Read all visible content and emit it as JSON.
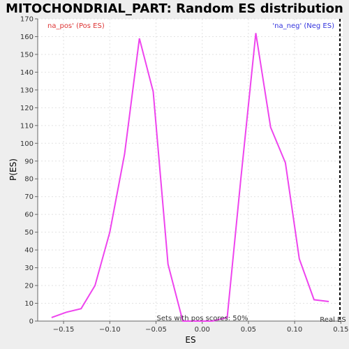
{
  "chart_data": {
    "type": "line",
    "title": "MITOCHONDRIAL_PART: Random ES distribution",
    "xlabel": "ES",
    "ylabel": "P(ES)",
    "xlim": [
      -0.178,
      0.152
    ],
    "ylim": [
      0,
      170
    ],
    "xticks": [
      -0.15,
      -0.1,
      -0.05,
      0.0,
      0.05,
      0.1,
      0.15
    ],
    "xtick_labels": [
      "−0.15",
      "−0.10",
      "−0.05",
      "0.00",
      "0.05",
      "0.10",
      "0.15"
    ],
    "yticks": [
      0,
      10,
      20,
      30,
      40,
      50,
      60,
      70,
      80,
      90,
      100,
      110,
      120,
      130,
      140,
      150,
      160,
      170
    ],
    "grid": true,
    "series": [
      {
        "color": "#ee44ee",
        "x": [
          -0.163,
          -0.147,
          -0.131,
          -0.116,
          -0.1,
          -0.084,
          -0.068,
          -0.053,
          -0.037,
          -0.021,
          -0.005,
          0.011,
          0.027,
          0.042,
          0.058,
          0.074,
          0.09,
          0.105,
          0.121,
          0.137
        ],
        "y": [
          2,
          5,
          7,
          20,
          50,
          94,
          159,
          129,
          32,
          0,
          0,
          0,
          2,
          81,
          162,
          109,
          89,
          35,
          12,
          11
        ]
      }
    ],
    "legend_pos": "na_pos' (Pos ES)",
    "legend_neg": "'na_neg' (Neg ES)",
    "legend_pos_color": "#dd3333",
    "legend_neg_color": "#3333dd",
    "annotation": "Sets with pos scores: 50%",
    "real_es_label": "Real ES",
    "real_es_x": 0.149
  }
}
